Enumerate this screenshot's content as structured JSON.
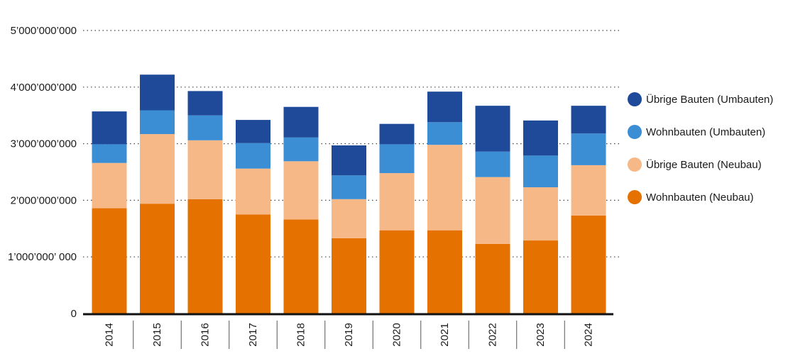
{
  "chart_data": {
    "type": "bar",
    "stacked": true,
    "categories": [
      "2014",
      "2015",
      "2016",
      "2017",
      "2018",
      "2019",
      "2020",
      "2021",
      "2022",
      "2023",
      "2024"
    ],
    "ylim": [
      0,
      5000000000
    ],
    "yticks": [
      {
        "value": 0,
        "label": "0"
      },
      {
        "value": 1000000000,
        "label": "1’000’000’ 000"
      },
      {
        "value": 2000000000,
        "label": "2’000’000’000"
      },
      {
        "value": 3000000000,
        "label": "3’000’000’000"
      },
      {
        "value": 4000000000,
        "label": "4’000’000’000"
      },
      {
        "value": 5000000000,
        "label": "5’000’000’000"
      }
    ],
    "grid": "horizontal-dotted",
    "legend_position": "right",
    "series": [
      {
        "name": "Wohnbauten (Neubau)",
        "color": "#e57200",
        "values": [
          1860000000,
          1940000000,
          2020000000,
          1750000000,
          1660000000,
          1330000000,
          1470000000,
          1470000000,
          1230000000,
          1290000000,
          1730000000
        ]
      },
      {
        "name": "Übrige Bauten (Neubau)",
        "color": "#f7b887",
        "values": [
          800000000,
          1230000000,
          1040000000,
          810000000,
          1030000000,
          690000000,
          1010000000,
          1510000000,
          1180000000,
          940000000,
          890000000
        ]
      },
      {
        "name": "Wohnbauten (Umbauten)",
        "color": "#3b8ed4",
        "values": [
          330000000,
          420000000,
          440000000,
          450000000,
          420000000,
          420000000,
          510000000,
          400000000,
          450000000,
          560000000,
          560000000
        ]
      },
      {
        "name": "Übrige Bauten (Umbauten)",
        "color": "#1f4a99",
        "values": [
          580000000,
          630000000,
          430000000,
          410000000,
          540000000,
          530000000,
          360000000,
          540000000,
          810000000,
          620000000,
          490000000
        ]
      }
    ],
    "legend_order": [
      "Übrige Bauten (Umbauten)",
      "Wohnbauten (Umbauten)",
      "Übrige Bauten (Neubau)",
      "Wohnbauten (Neubau)"
    ]
  }
}
